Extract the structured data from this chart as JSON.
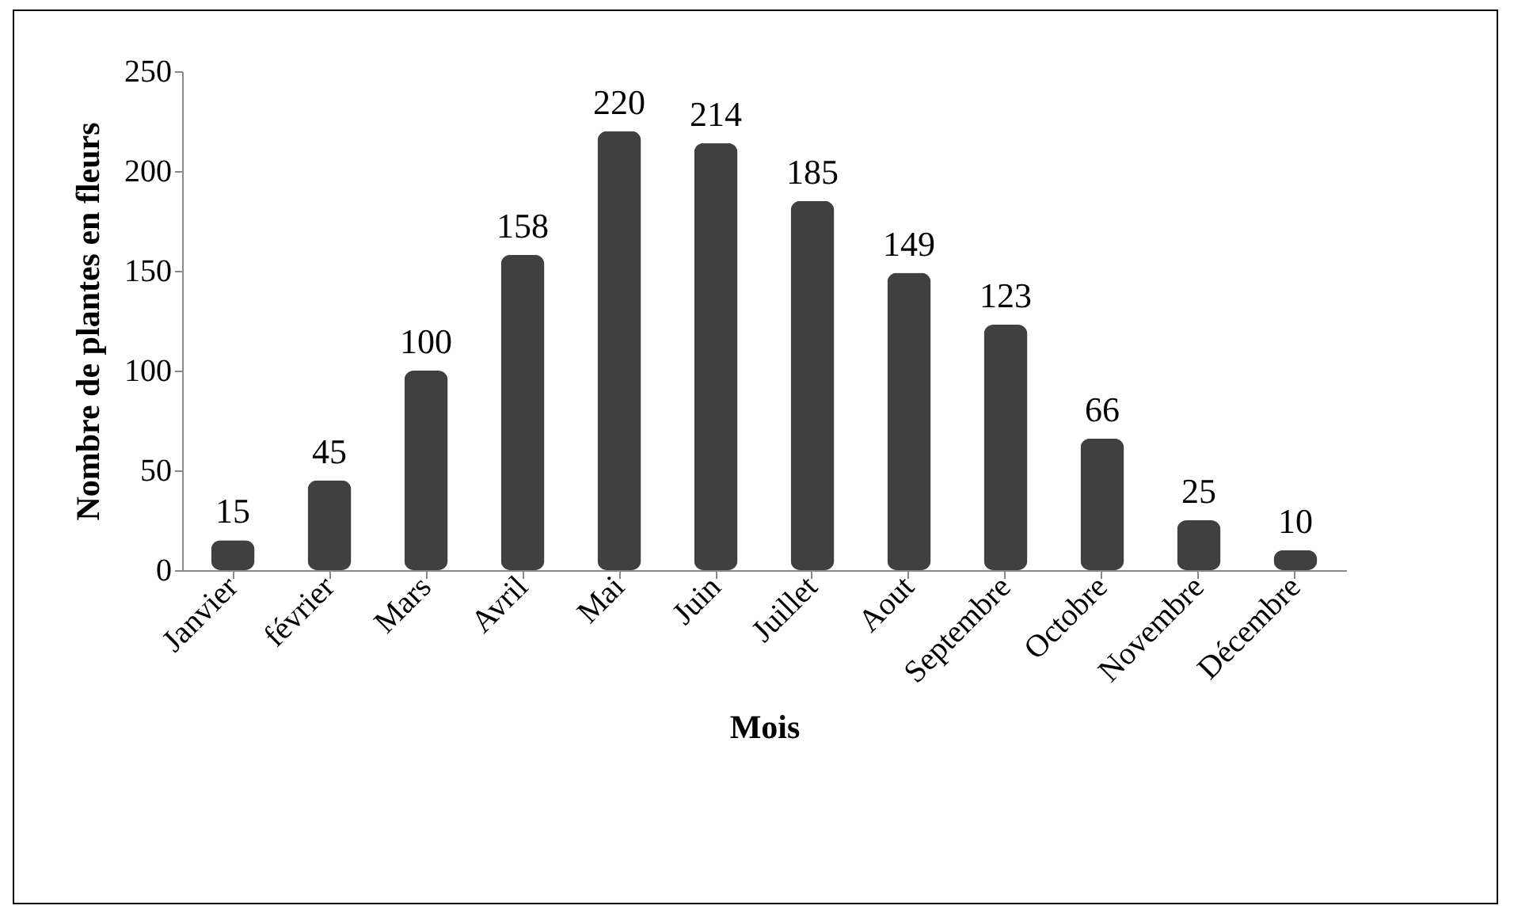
{
  "chart_data": {
    "type": "bar",
    "xlabel": "Mois",
    "ylabel": "Nombre de plantes en fleurs",
    "categories": [
      "Janvier",
      "février",
      "Mars",
      "Avril",
      "Mai",
      "Juin",
      "Juillet",
      "Aout",
      "Septembre",
      "Octobre",
      "Novembre",
      "Décembre"
    ],
    "values": [
      15,
      45,
      100,
      158,
      220,
      214,
      185,
      149,
      123,
      66,
      25,
      10
    ],
    "color": "#404040",
    "ylim": [
      0,
      250
    ],
    "yticks": [
      0,
      50,
      100,
      150,
      200,
      250
    ],
    "data_labels": true,
    "grid": false
  }
}
